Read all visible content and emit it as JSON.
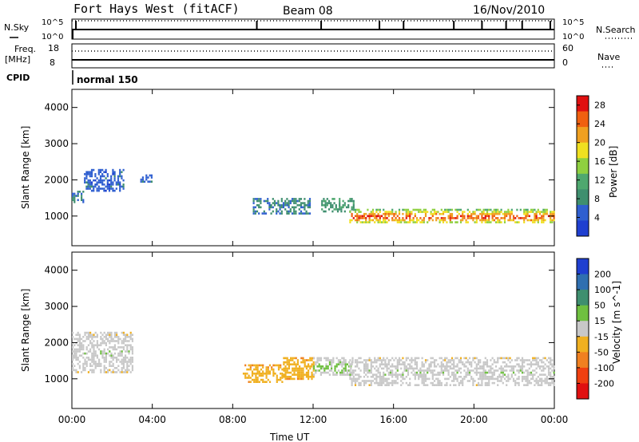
{
  "header": {
    "station": "Fort Hays West (fitACF)",
    "beam": "Beam 08",
    "date": "16/Nov/2010"
  },
  "strips": {
    "nsky_label": "N.Sky",
    "nsky_top": "10^5",
    "nsky_bottom": "10^0",
    "nsearch_label": "N.Search",
    "nsearch_top": "10^5",
    "nsearch_bottom": "10^0",
    "freq_label_1": "Freq.",
    "freq_label_2": "[MHz]",
    "freq_top": "18",
    "freq_bottom": "8",
    "nave_label": "Nave",
    "nave_top": "60",
    "nave_bottom": "0",
    "cpid_label": "CPID",
    "cpid_value": "normal 150"
  },
  "axes": {
    "ylabel": "Slant Range [km]",
    "xlabel": "Time UT",
    "x_ticks": [
      "00:00",
      "04:00",
      "08:00",
      "12:00",
      "16:00",
      "20:00",
      "00:00"
    ],
    "y_ticks": [
      "1000",
      "2000",
      "3000",
      "4000"
    ]
  },
  "colors": {
    "power": [
      "#1f3fd0",
      "#2f5fd0",
      "#3f8f6f",
      "#4fa86f",
      "#8fd040",
      "#f0e020",
      "#f0a020",
      "#f06010",
      "#e01010"
    ],
    "velocity": [
      "#1f3fd0",
      "#2f6fb0",
      "#3f8f6f",
      "#6fc040",
      "#c8c8c8",
      "#f0b020",
      "#f08020",
      "#f04010",
      "#e01010"
    ]
  },
  "chart_data": [
    {
      "type": "heatmap",
      "title": "Power",
      "xlabel": "Time UT",
      "ylabel": "Slant Range [km]",
      "xlim": [
        0,
        24
      ],
      "ylim": [
        180,
        4500
      ],
      "colorbar": {
        "label": "Power [dB]",
        "ticks": [
          "4",
          "8",
          "12",
          "16",
          "20",
          "24",
          "28"
        ],
        "range": [
          0,
          30
        ]
      },
      "bands": [
        {
          "start_h": 0.0,
          "end_h": 0.6,
          "range_km": [
            1400,
            1700
          ],
          "value": 8
        },
        {
          "start_h": 0.6,
          "end_h": 2.6,
          "range_km": [
            1700,
            2300
          ],
          "value": 6
        },
        {
          "start_h": 3.4,
          "end_h": 4.0,
          "range_km": [
            1950,
            2150
          ],
          "value": 6
        },
        {
          "start_h": 9.0,
          "end_h": 11.8,
          "range_km": [
            1050,
            1500
          ],
          "value": 8
        },
        {
          "start_h": 12.4,
          "end_h": 14.0,
          "range_km": [
            1100,
            1500
          ],
          "value": 10
        },
        {
          "start_h": 13.8,
          "end_h": 24.0,
          "range_km": [
            800,
            1200
          ],
          "value": 20
        }
      ]
    },
    {
      "type": "heatmap",
      "title": "Velocity",
      "xlabel": "Time UT",
      "ylabel": "Slant Range [km]",
      "xlim": [
        0,
        24
      ],
      "ylim": [
        180,
        4500
      ],
      "colorbar": {
        "label": "Velocity [m s^-1]",
        "ticks": [
          "200",
          "100",
          "50",
          "15",
          "-15",
          "-50",
          "-100",
          "-200"
        ],
        "range": [
          -250,
          250
        ]
      },
      "bands": [
        {
          "start_h": 0.0,
          "end_h": 3.0,
          "range_km": [
            1200,
            2300
          ],
          "value": 0
        },
        {
          "start_h": 8.5,
          "end_h": 10.5,
          "range_km": [
            900,
            1400
          ],
          "value": -60
        },
        {
          "start_h": 10.5,
          "end_h": 12.0,
          "range_km": [
            1000,
            1600
          ],
          "value": -60
        },
        {
          "start_h": 12.0,
          "end_h": 14.0,
          "range_km": [
            1100,
            1600
          ],
          "value": 20
        },
        {
          "start_h": 13.8,
          "end_h": 24.0,
          "range_km": [
            800,
            1600
          ],
          "value": 0
        }
      ]
    }
  ]
}
